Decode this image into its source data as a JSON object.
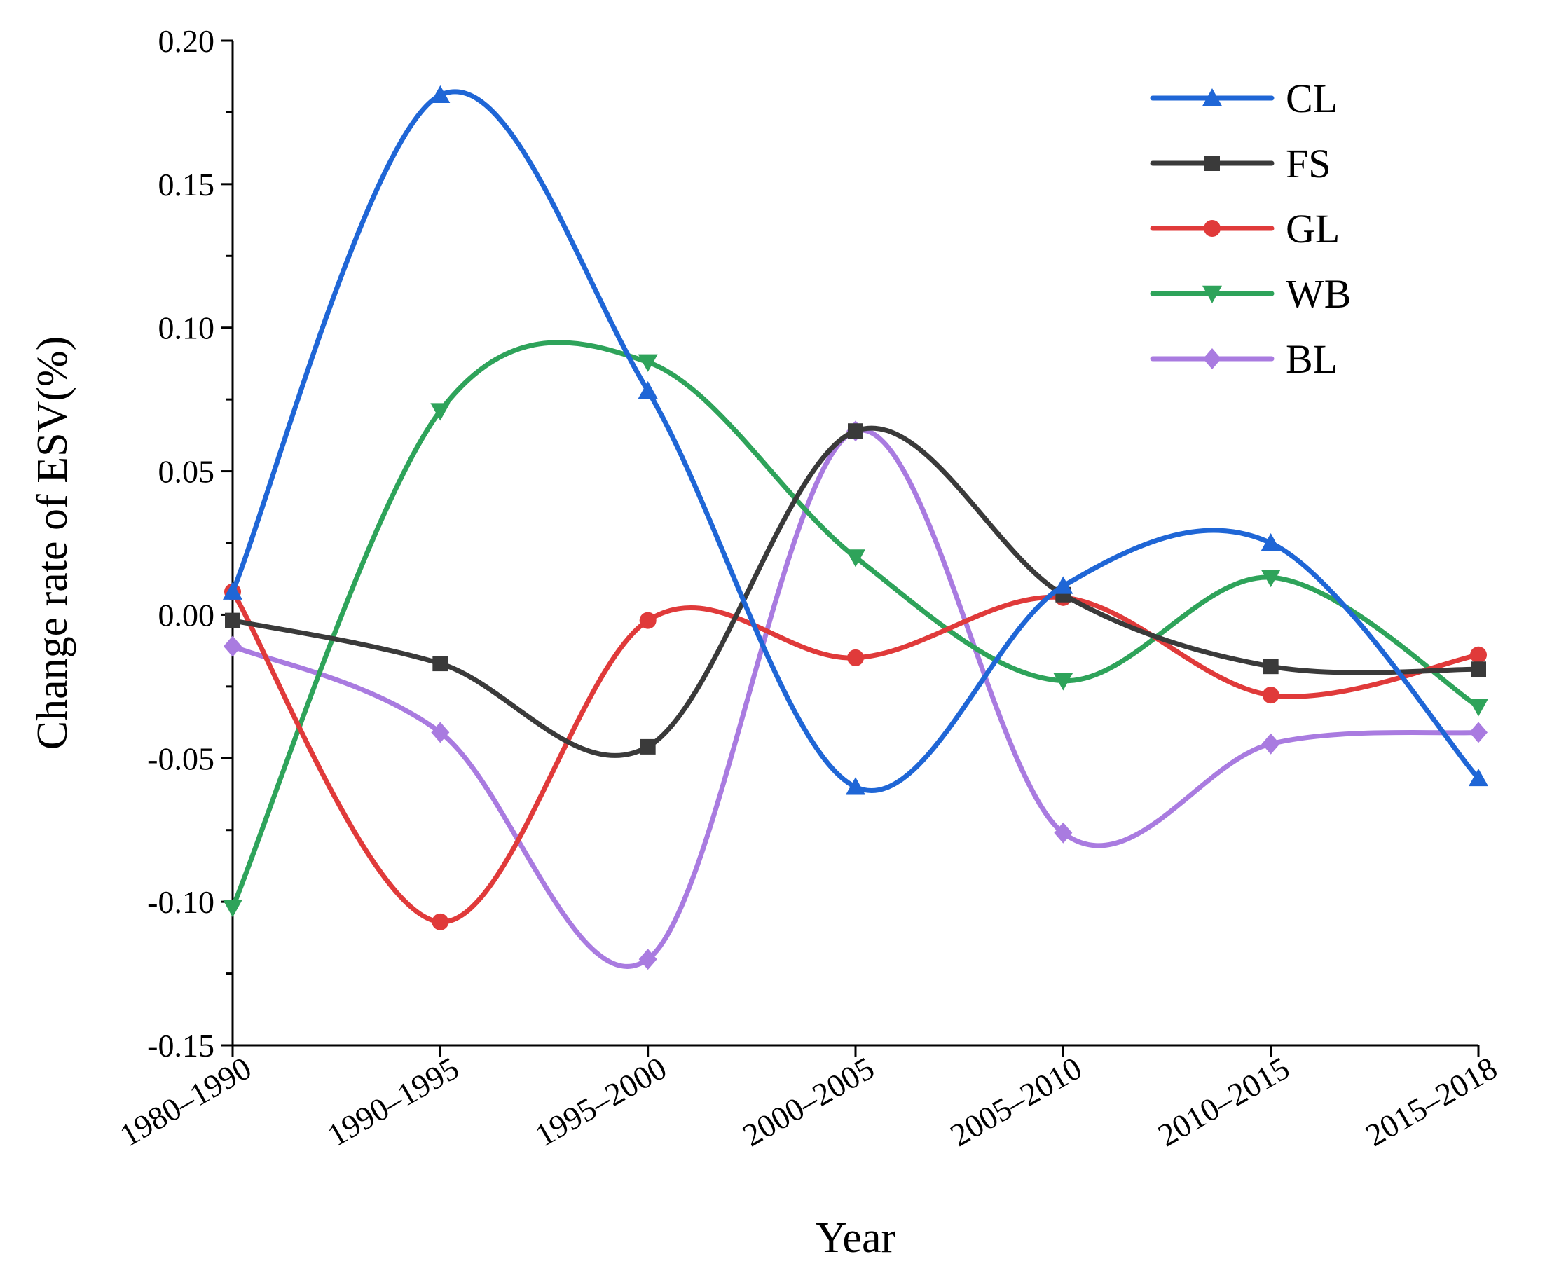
{
  "chart_data": {
    "type": "line",
    "title": "",
    "xlabel": "Year",
    "ylabel": "Change rate of ESV(%)",
    "categories": [
      "1980–1990",
      "1990–1995",
      "1995–2000",
      "2000–2005",
      "2005–2010",
      "2010–2015",
      "2015–2018"
    ],
    "ylim": [
      -0.15,
      0.2
    ],
    "yticks": [
      "0.20",
      "0.15",
      "0.10",
      "0.05",
      "0.00",
      "-0.05",
      "-0.10",
      "-0.15"
    ],
    "grid": false,
    "legend_position": "top-right",
    "series": [
      {
        "name": "CL",
        "color": "#1f66d6",
        "marker": "triangle-up",
        "values": [
          0.008,
          0.181,
          0.078,
          -0.06,
          0.01,
          0.025,
          -0.057
        ]
      },
      {
        "name": "FS",
        "color": "#3a3a3a",
        "marker": "square",
        "values": [
          -0.002,
          -0.017,
          -0.046,
          0.064,
          0.007,
          -0.018,
          -0.019
        ]
      },
      {
        "name": "GL",
        "color": "#e03a3a",
        "marker": "circle",
        "values": [
          0.008,
          -0.107,
          -0.002,
          -0.015,
          0.006,
          -0.028,
          -0.014
        ]
      },
      {
        "name": "WB",
        "color": "#2ea35a",
        "marker": "triangle-down",
        "values": [
          -0.102,
          0.071,
          0.088,
          0.02,
          -0.023,
          0.013,
          -0.032
        ]
      },
      {
        "name": "BL",
        "color": "#a97be0",
        "marker": "diamond",
        "values": [
          -0.011,
          -0.041,
          -0.12,
          0.064,
          -0.076,
          -0.045,
          -0.041
        ]
      }
    ]
  }
}
